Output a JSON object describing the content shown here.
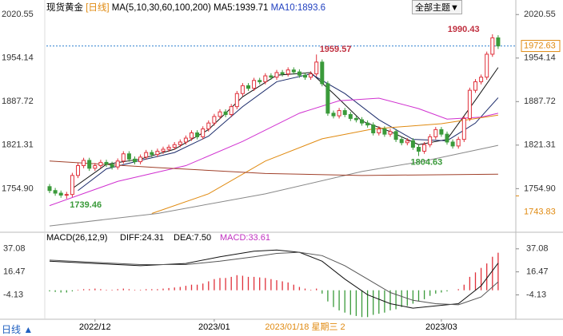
{
  "header": {
    "symbol": "现货黄金",
    "period": "[日线]",
    "ma_spec": "MA(5,10,30,60,100,200)",
    "ma5": "MA5:1939.71",
    "ma10": "MA10:1893.6",
    "theme_button": "全部主题▼",
    "footer_period": "日线 ▲"
  },
  "chart_data": {
    "type": "candlestick",
    "open": [
      1758,
      1752,
      1748,
      1745,
      1746,
      1775,
      1790,
      1798,
      1786,
      1790,
      1795,
      1792,
      1788,
      1797,
      1808,
      1800,
      1796,
      1803,
      1810,
      1807,
      1812,
      1815,
      1818,
      1822,
      1826,
      1832,
      1840,
      1834,
      1846,
      1855,
      1865,
      1872,
      1868,
      1880,
      1900,
      1912,
      1908,
      1920,
      1918,
      1927,
      1925,
      1932,
      1930,
      1936,
      1933,
      1928,
      1925,
      1930,
      1948,
      1915,
      1870,
      1866,
      1874,
      1868,
      1862,
      1860,
      1855,
      1852,
      1840,
      1846,
      1838,
      1842,
      1830,
      1825,
      1828,
      1818,
      1812,
      1822,
      1834,
      1845,
      1838,
      1826,
      1820,
      1830,
      1862,
      1905,
      1918,
      1925,
      1960,
      1985
    ],
    "high": [
      1762,
      1756,
      1752,
      1750,
      1779,
      1794,
      1802,
      1802,
      1794,
      1799,
      1799,
      1796,
      1801,
      1812,
      1812,
      1804,
      1807,
      1814,
      1814,
      1816,
      1819,
      1822,
      1826,
      1830,
      1836,
      1844,
      1844,
      1850,
      1859,
      1869,
      1876,
      1876,
      1884,
      1904,
      1916,
      1916,
      1924,
      1924,
      1931,
      1931,
      1936,
      1936,
      1940,
      1940,
      1937,
      1932,
      1934,
      1959.57,
      1952,
      1919,
      1874,
      1878,
      1878,
      1872,
      1866,
      1864,
      1859,
      1856,
      1850,
      1850,
      1846,
      1846,
      1834,
      1832,
      1832,
      1822,
      1826,
      1838,
      1849,
      1849,
      1842,
      1830,
      1834,
      1866,
      1909,
      1922,
      1929,
      1964,
      1990.43,
      1989
    ],
    "low": [
      1748,
      1744,
      1741,
      1739.46,
      1742,
      1771,
      1786,
      1782,
      1782,
      1786,
      1788,
      1784,
      1784,
      1793,
      1796,
      1792,
      1792,
      1799,
      1803,
      1803,
      1808,
      1811,
      1814,
      1818,
      1822,
      1828,
      1830,
      1830,
      1842,
      1851,
      1861,
      1864,
      1864,
      1876,
      1896,
      1904,
      1904,
      1914,
      1914,
      1921,
      1921,
      1926,
      1926,
      1929,
      1924,
      1921,
      1921,
      1926,
      1911,
      1866,
      1862,
      1862,
      1864,
      1858,
      1856,
      1851,
      1848,
      1836,
      1836,
      1834,
      1834,
      1826,
      1821,
      1821,
      1814,
      1804.63,
      1808,
      1818,
      1830,
      1834,
      1822,
      1816,
      1816,
      1826,
      1858,
      1901,
      1914,
      1921,
      1956,
      1968
    ],
    "close": [
      1752,
      1748,
      1745,
      1746,
      1775,
      1790,
      1798,
      1786,
      1790,
      1795,
      1792,
      1788,
      1797,
      1808,
      1800,
      1796,
      1803,
      1810,
      1807,
      1812,
      1815,
      1818,
      1822,
      1826,
      1832,
      1840,
      1834,
      1846,
      1855,
      1865,
      1872,
      1868,
      1880,
      1900,
      1912,
      1908,
      1920,
      1918,
      1927,
      1925,
      1932,
      1930,
      1936,
      1933,
      1928,
      1925,
      1930,
      1948,
      1915,
      1870,
      1866,
      1874,
      1868,
      1862,
      1860,
      1855,
      1852,
      1840,
      1846,
      1838,
      1842,
      1830,
      1825,
      1828,
      1818,
      1812,
      1822,
      1834,
      1845,
      1838,
      1826,
      1820,
      1830,
      1862,
      1905,
      1918,
      1925,
      1960,
      1985,
      1972.63
    ],
    "up_color": "#e0303a",
    "down_color": "#3a9a3a",
    "lines": [
      {
        "name": "MA5",
        "color": "#111111",
        "x": [
          4,
          10,
          16,
          22,
          28,
          34,
          40,
          46,
          50,
          55,
          60,
          65,
          70,
          75,
          79
        ],
        "values": [
          1755,
          1792,
          1800,
          1815,
          1845,
          1895,
          1928,
          1932,
          1900,
          1858,
          1842,
          1822,
          1830,
          1890,
          1939.71
        ]
      },
      {
        "name": "MA10",
        "color": "#1a2a6a",
        "x": [
          5,
          10,
          16,
          22,
          28,
          34,
          40,
          46,
          52,
          58,
          64,
          70,
          75,
          79
        ],
        "values": [
          1752,
          1785,
          1798,
          1810,
          1835,
          1880,
          1918,
          1930,
          1900,
          1860,
          1830,
          1828,
          1855,
          1893.6
        ]
      },
      {
        "name": "MA30",
        "color": "#d030d0",
        "x": [
          0,
          12,
          24,
          34,
          44,
          51,
          58,
          65,
          70,
          76,
          79
        ],
        "values": [
          1729,
          1766,
          1790,
          1827,
          1870,
          1889,
          1893,
          1877,
          1861,
          1864,
          1870
        ]
      },
      {
        "name": "MA60",
        "color": "#e08a10",
        "x": [
          18,
          28,
          38,
          48,
          57,
          69,
          79
        ],
        "values": [
          1717,
          1747,
          1797,
          1831,
          1846,
          1854,
          1867
        ]
      },
      {
        "name": "MA100",
        "color": "#888888",
        "x": [
          0,
          19,
          38,
          55,
          66,
          79
        ],
        "values": [
          1698,
          1717,
          1747,
          1781,
          1797,
          1821
        ]
      },
      {
        "name": "MA200",
        "color": "#a0402a",
        "x": [
          0,
          19,
          38,
          55,
          79
        ],
        "values": [
          1797,
          1787,
          1778,
          1775,
          1777
        ]
      }
    ],
    "ylim": [
      1692,
      2033
    ],
    "yticks": [
      2020.55,
      1954.14,
      1887.72,
      1821.31,
      {
        "value": 1754.9,
        "label": "1754.90"
      }
    ],
    "right_marker": 1743.83,
    "xlabels": [
      {
        "index": 8,
        "label": "2022/12"
      },
      {
        "index": 29,
        "label": "2023/01"
      },
      {
        "index": 69,
        "label": "2023/03"
      }
    ],
    "cursor": {
      "index": 45,
      "label": "2023/01/18 星期三 2"
    },
    "macd": {
      "title": "MACD(26,12,9)",
      "diff_label": "DIFF:24.31",
      "dea_label": "DEA:7.50",
      "macd_label": "MACD:33.61",
      "histogram": [
        -1,
        -1.5,
        -2,
        -2,
        -1,
        0.5,
        1,
        1,
        1.5,
        1,
        0.5,
        0.5,
        1,
        1.5,
        1,
        0.5,
        0.5,
        1,
        1,
        1,
        1.5,
        2,
        2.5,
        3,
        4,
        5,
        5,
        6,
        8,
        10,
        11,
        11,
        12,
        13.5,
        13,
        12,
        12,
        11.5,
        11,
        10,
        9,
        8,
        7,
        5,
        3,
        1.5,
        0.5,
        1.5,
        -3,
        -10,
        -15,
        -18,
        -20,
        -22,
        -23,
        -24,
        -24,
        -22,
        -21,
        -20,
        -18,
        -17,
        -15,
        -14,
        -12,
        -10,
        -8,
        -5,
        -3,
        -2,
        -1,
        0,
        1,
        5,
        12,
        16,
        20,
        24,
        30,
        33.61
      ],
      "diff": {
        "color": "#111111",
        "x": [
          0,
          8,
          16,
          24,
          30,
          36,
          40,
          44,
          48,
          52,
          56,
          60,
          64,
          68,
          72,
          76,
          79
        ],
        "values": [
          26,
          24,
          22,
          24,
          30,
          35,
          36,
          34,
          26,
          10,
          -4,
          -12,
          -16,
          -14,
          -12,
          4,
          24.31
        ]
      },
      "dea": {
        "color": "#555555",
        "x": [
          0,
          8,
          16,
          24,
          30,
          36,
          40,
          44,
          48,
          52,
          56,
          60,
          64,
          68,
          72,
          76,
          79
        ],
        "values": [
          27,
          25,
          23,
          23,
          26,
          30,
          33,
          34,
          31,
          22,
          10,
          -2,
          -9,
          -12,
          -13,
          -6,
          7.5
        ]
      },
      "ylim": [
        -24.5,
        45.5
      ],
      "yticks": [
        37.08,
        16.47,
        -4.13
      ]
    }
  }
}
